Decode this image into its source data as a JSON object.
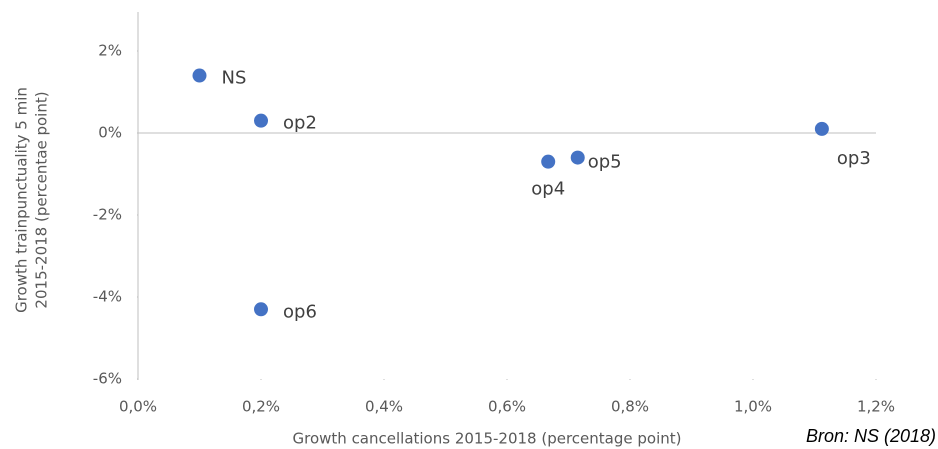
{
  "chart_data": {
    "type": "scatter",
    "x_label": "Growth cancellations 2015-2018 (percentage point)",
    "y_label": [
      "Growth trainpunctuality 5 min",
      "2015-2018 (percentae point)"
    ],
    "source": "Bron: NS (2018)",
    "color": "#4472c4",
    "point_labels": [
      "NS",
      "op2",
      "op4",
      "op5",
      "op3",
      "op6"
    ],
    "x": [
      0.1,
      0.2,
      0.667,
      0.715,
      1.112,
      0.2
    ],
    "values": [
      1.4,
      0.3,
      -0.7,
      -0.6,
      0.1,
      -4.3
    ],
    "xlim": [
      0,
      1.2
    ],
    "xticks": [
      {
        "value": 0,
        "label": "0,0%"
      },
      {
        "value": 0.2,
        "label": "0,2%"
      },
      {
        "value": 0.4,
        "label": "0,4%"
      },
      {
        "value": 0.6,
        "label": "0,6%"
      },
      {
        "value": 0.8,
        "label": "0,8%"
      },
      {
        "value": 1.0,
        "label": "1,0%"
      },
      {
        "value": 1.2,
        "label": "1,2%"
      }
    ],
    "ylim": [
      -6,
      2.95
    ],
    "yticks": [
      {
        "value": 2,
        "label": "2%"
      },
      {
        "value": 0,
        "label": "0%"
      },
      {
        "value": -2,
        "label": "-2%"
      },
      {
        "value": -4,
        "label": "-4%"
      },
      {
        "value": -6,
        "label": "-6%"
      }
    ],
    "grid": false
  }
}
